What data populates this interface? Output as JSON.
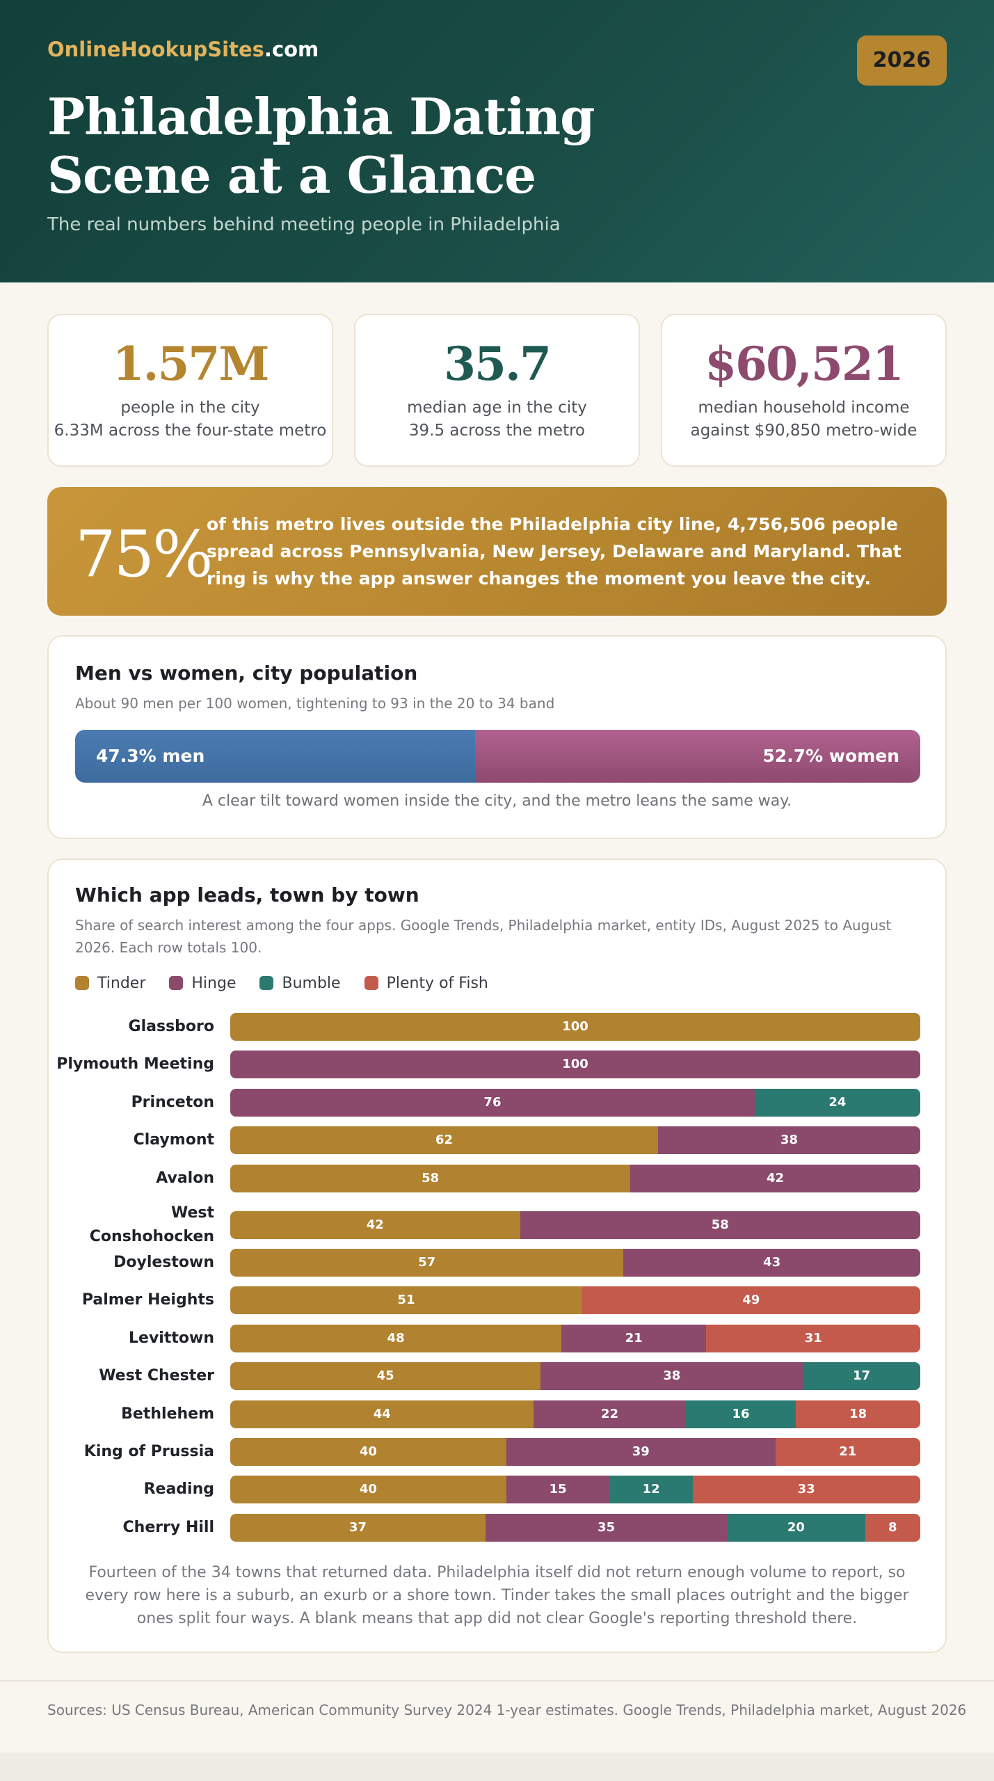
{
  "header": {
    "brand_part1": "OnlineHookupSites",
    "brand_part2": ".com",
    "year_badge": "2026",
    "title_line1": "Philadelphia Dating",
    "title_line2": "Scene at a Glance",
    "subtitle": "The real numbers behind meeting people in Philadelphia"
  },
  "stats": [
    {
      "value": "1.57M",
      "line1": "people in the city",
      "line2": "6.33M across the four-state metro",
      "color": "#b5862f"
    },
    {
      "value": "35.7",
      "line1": "median age in the city",
      "line2": "39.5 across the metro",
      "color": "#1f5a52"
    },
    {
      "value": "$60,521",
      "line1": "median household income",
      "line2": "against $90,850 metro-wide",
      "color": "#8e4a6e"
    }
  ],
  "banner": {
    "percent": "75%",
    "text": "of this metro lives outside the Philadelphia city line, 4,756,506 people spread across Pennsylvania, New Jersey, Delaware and Maryland. That ring is why the app answer changes the moment you leave the city."
  },
  "gender": {
    "title": "Men vs women, city population",
    "note": "About 90 men per 100 women, tightening to 93 in the 20 to 34 band",
    "men_pct": 47.3,
    "women_pct": 52.7,
    "men_label": "47.3% men",
    "women_label": "52.7% women",
    "caption": "A clear tilt toward women inside the city, and the metro leans the same way."
  },
  "chart_data": {
    "type": "bar",
    "orientation": "horizontal",
    "stacked": true,
    "title": "Which app leads, town by town",
    "subtitle": "Share of search interest among the four apps. Google Trends, Philadelphia market, entity IDs, August 2025 to August 2026. Each row totals 100.",
    "legend_position": "top-left",
    "categories": [
      "Glassboro",
      "Plymouth Meeting",
      "Princeton",
      "Claymont",
      "Avalon",
      "West Conshohocken",
      "Doylestown",
      "Palmer Heights",
      "Levittown",
      "West Chester",
      "Bethlehem",
      "King of Prussia",
      "Reading",
      "Cherry Hill"
    ],
    "series": [
      {
        "name": "Tinder",
        "color": "#b1822f",
        "values": [
          100,
          null,
          null,
          62,
          58,
          42,
          57,
          51,
          48,
          45,
          44,
          40,
          40,
          37
        ]
      },
      {
        "name": "Hinge",
        "color": "#8b4a6b",
        "values": [
          null,
          100,
          76,
          38,
          42,
          58,
          43,
          null,
          21,
          38,
          22,
          39,
          15,
          35
        ]
      },
      {
        "name": "Bumble",
        "color": "#2b7a72",
        "values": [
          null,
          null,
          24,
          null,
          null,
          null,
          null,
          null,
          null,
          17,
          16,
          null,
          12,
          20
        ]
      },
      {
        "name": "Plenty of Fish",
        "color": "#c45a4b",
        "values": [
          null,
          null,
          null,
          null,
          null,
          null,
          null,
          49,
          31,
          null,
          18,
          21,
          33,
          8
        ]
      }
    ],
    "xlim": [
      0,
      100
    ],
    "caption": "Fourteen of the 34 towns that returned data. Philadelphia itself did not return enough volume to report, so every row here is a suburb, an exurb or a shore town. Tinder takes the small places outright and the bigger ones split four ways. A blank means that app did not clear Google's reporting threshold there."
  },
  "footer": {
    "sources": "Sources: US Census Bureau, American Community Survey 2024 1-year estimates. Google Trends, Philadelphia market, August 2026"
  }
}
